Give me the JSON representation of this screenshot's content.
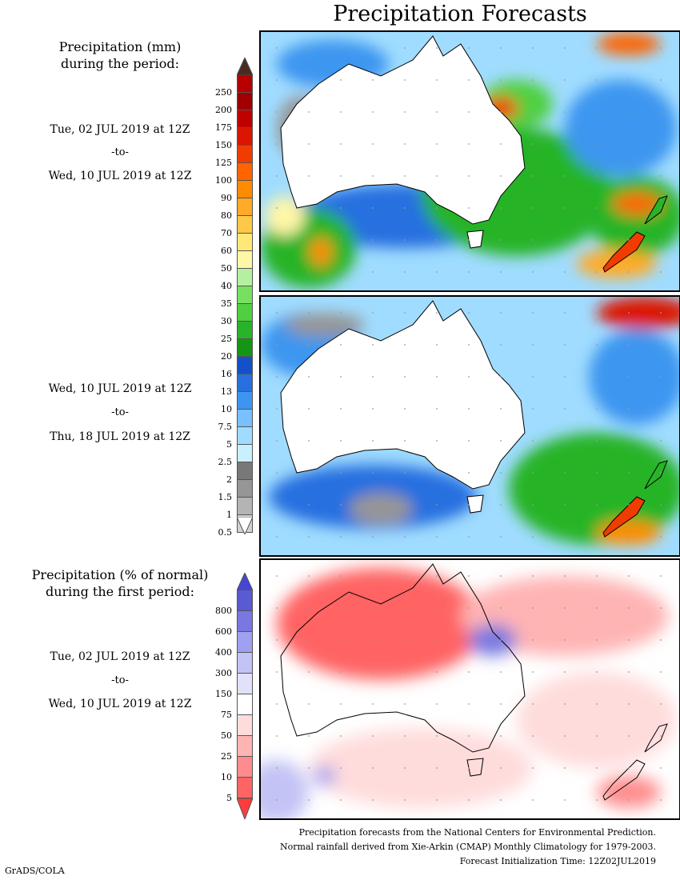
{
  "title": "Precipitation Forecasts",
  "section1": {
    "heading_line1": "Precipitation (mm)",
    "heading_line2": "during the period:"
  },
  "period1": {
    "start": "Tue, 02 JUL 2019 at 12Z",
    "to": "-to-",
    "end": "Wed, 10 JUL 2019 at 12Z"
  },
  "period2": {
    "start": "Wed, 10 JUL 2019 at 12Z",
    "to": "-to-",
    "end": "Thu, 18 JUL 2019 at 12Z"
  },
  "section2": {
    "heading_line1": "Precipitation (% of normal)",
    "heading_line2": "during the first period:"
  },
  "period3": {
    "start": "Tue, 02 JUL 2019 at 12Z",
    "to": "-to-",
    "end": "Wed, 10 JUL 2019 at 12Z"
  },
  "precip_scale": {
    "labels": [
      "250",
      "200",
      "175",
      "150",
      "125",
      "100",
      "90",
      "80",
      "70",
      "60",
      "50",
      "40",
      "35",
      "30",
      "25",
      "20",
      "16",
      "13",
      "10",
      "7.5",
      "5",
      "2.5",
      "2",
      "1.5",
      "1",
      "0.5"
    ],
    "colors": [
      "#b80000",
      "#a00000",
      "#c00000",
      "#dc1400",
      "#f03c00",
      "#ff6400",
      "#ff8c00",
      "#ffaa28",
      "#ffc846",
      "#ffe878",
      "#fff6a8",
      "#b4f0a0",
      "#78e060",
      "#50d040",
      "#28b428",
      "#149614",
      "#1450c8",
      "#2870e0",
      "#3c96f0",
      "#78c0ff",
      "#a0dcff",
      "#c8f0ff",
      "#787878",
      "#969696",
      "#b4b4b4",
      "#d2d2d2"
    ],
    "top_color": "#4b2a20"
  },
  "percent_scale": {
    "labels": [
      "800",
      "600",
      "400",
      "300",
      "150",
      "75",
      "50",
      "25",
      "10",
      "5"
    ],
    "colors": [
      "#5a5ad2",
      "#7878e0",
      "#a0a0f0",
      "#c3c3f5",
      "#e1e1fa",
      "#ffffff",
      "#ffdcdc",
      "#ffb4b4",
      "#ff8c8c",
      "#ff6464"
    ],
    "top_color": "#4646d2",
    "bottom_color": "#ff3c3c"
  },
  "footer": {
    "line1": "Precipitation forecasts from the National Centers for Environmental Prediction.",
    "line2": "Normal rainfall derived from Xie-Arkin (CMAP) Monthly Climatology for 1979-2003.",
    "line3": "Forecast Initialization Time: 12Z02JUL2019"
  },
  "credit": "GrADS/COLA"
}
